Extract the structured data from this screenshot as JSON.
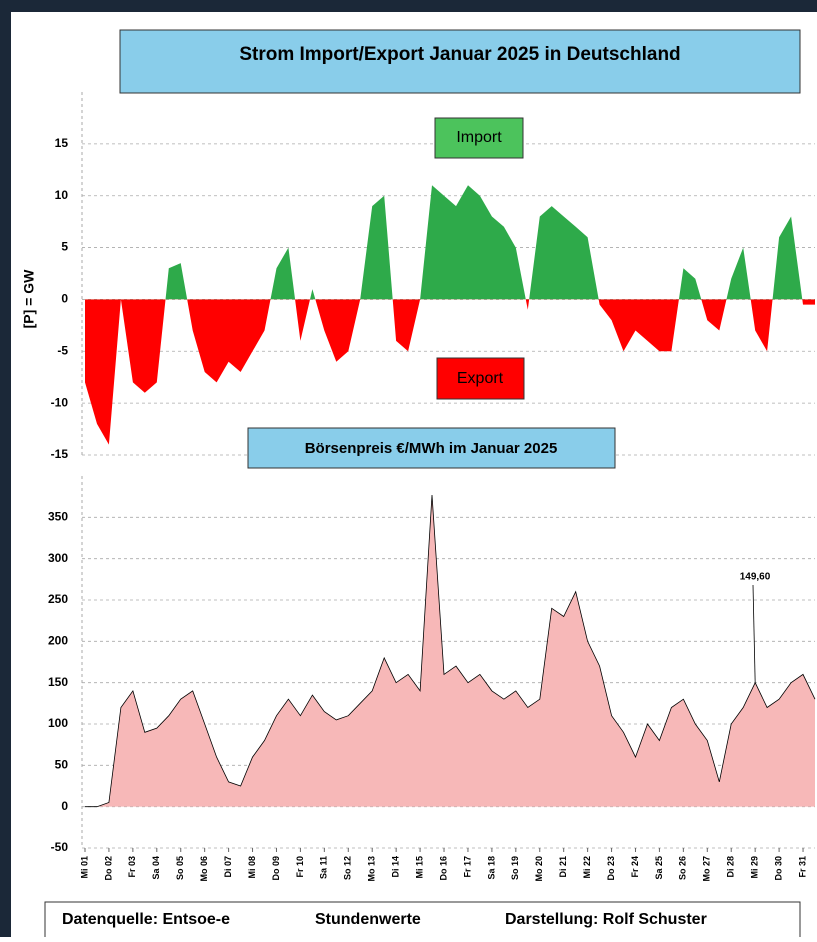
{
  "chart_data": [
    {
      "type": "area",
      "title": "Strom Import/Export Januar 2025 in Deutschland",
      "ylabel": "[P] = GW",
      "annotations": [
        "Import",
        "Export"
      ],
      "x": [
        1,
        1.5,
        2,
        2.5,
        3,
        3.5,
        4,
        4.5,
        5,
        5.5,
        6,
        6.5,
        7,
        7.5,
        8,
        8.5,
        9,
        9.5,
        10,
        10.5,
        11,
        11.5,
        12,
        12.5,
        13,
        13.5,
        14,
        14.5,
        15,
        15.5,
        16,
        16.5,
        17,
        17.5,
        18,
        18.5,
        19,
        19.5,
        20,
        20.5,
        21,
        21.5,
        22,
        22.5,
        23,
        23.5,
        24,
        24.5,
        25,
        25.5,
        26,
        26.5,
        27,
        27.5,
        28,
        28.5,
        29,
        29.5,
        30,
        30.5,
        31,
        31.5
      ],
      "values": [
        -8,
        -12,
        -14,
        0,
        -8,
        -9,
        -8,
        3,
        3.5,
        -3,
        -7,
        -8,
        -6,
        -7,
        -5,
        -3,
        3,
        5,
        -4,
        1,
        -3,
        -6,
        -5,
        0,
        9,
        10,
        -4,
        -5,
        0,
        11,
        10,
        9,
        11,
        10,
        8,
        7,
        5,
        -1,
        8,
        9,
        8,
        7,
        6,
        -0.5,
        -2,
        -5,
        -3,
        -4,
        -5,
        -5,
        3,
        2,
        -2,
        -3,
        2,
        5,
        -3,
        -5,
        6,
        8,
        -0.5,
        -0.5
      ],
      "colors": {
        "positive": "#2eaa4a",
        "negative": "#ff0000"
      },
      "xlim": [
        1,
        31.5
      ],
      "ylim": [
        -15,
        20
      ],
      "yticks": [
        -15,
        -10,
        -5,
        0,
        5,
        10,
        15
      ],
      "grid": true
    },
    {
      "type": "area",
      "title": "Börsenpreis €/MWh im Januar 2025",
      "annotation": "149,60",
      "x": [
        1,
        1.5,
        2,
        2.5,
        3,
        3.5,
        4,
        4.5,
        5,
        5.5,
        6,
        6.5,
        7,
        7.5,
        8,
        8.5,
        9,
        9.5,
        10,
        10.5,
        11,
        11.5,
        12,
        12.5,
        13,
        13.5,
        14,
        14.5,
        15,
        15.5,
        16,
        16.5,
        17,
        17.5,
        18,
        18.5,
        19,
        19.5,
        20,
        20.5,
        21,
        21.5,
        22,
        22.5,
        23,
        23.5,
        24,
        24.5,
        25,
        25.5,
        26,
        26.5,
        27,
        27.5,
        28,
        28.5,
        29,
        29.5,
        30,
        30.5,
        31,
        31.5
      ],
      "values": [
        0,
        0,
        5,
        120,
        140,
        90,
        95,
        110,
        130,
        140,
        100,
        60,
        30,
        25,
        60,
        80,
        110,
        130,
        110,
        135,
        115,
        105,
        110,
        125,
        140,
        180,
        150,
        160,
        140,
        377,
        160,
        170,
        150,
        160,
        140,
        130,
        140,
        120,
        130,
        240,
        230,
        260,
        200,
        170,
        110,
        90,
        60,
        100,
        80,
        120,
        130,
        100,
        80,
        30,
        100,
        120,
        150,
        120,
        130,
        150,
        160,
        130
      ],
      "colors": {
        "fill": "#f7b8b8",
        "line": "#000000"
      },
      "xlim": [
        1,
        31.5
      ],
      "ylim": [
        -50,
        400
      ],
      "yticks": [
        -50,
        0,
        50,
        100,
        150,
        200,
        250,
        300,
        350
      ],
      "grid": true,
      "xticks": [
        {
          "value": 1,
          "label": "Mi 01"
        },
        {
          "value": 2,
          "label": "Do 02"
        },
        {
          "value": 3,
          "label": "Fr 03"
        },
        {
          "value": 4,
          "label": "Sa 04"
        },
        {
          "value": 5,
          "label": "So 05"
        },
        {
          "value": 6,
          "label": "Mo 06"
        },
        {
          "value": 7,
          "label": "Di 07"
        },
        {
          "value": 8,
          "label": "Mi 08"
        },
        {
          "value": 9,
          "label": "Do 09"
        },
        {
          "value": 10,
          "label": "Fr 10"
        },
        {
          "value": 11,
          "label": "Sa 11"
        },
        {
          "value": 12,
          "label": "So 12"
        },
        {
          "value": 13,
          "label": "Mo 13"
        },
        {
          "value": 14,
          "label": "Di 14"
        },
        {
          "value": 15,
          "label": "Mi 15"
        },
        {
          "value": 16,
          "label": "Do 16"
        },
        {
          "value": 17,
          "label": "Fr 17"
        },
        {
          "value": 18,
          "label": "Sa 18"
        },
        {
          "value": 19,
          "label": "So 19"
        },
        {
          "value": 20,
          "label": "Mo 20"
        },
        {
          "value": 21,
          "label": "Di 21"
        },
        {
          "value": 22,
          "label": "Mi 22"
        },
        {
          "value": 23,
          "label": "Do 23"
        },
        {
          "value": 24,
          "label": "Fr 24"
        },
        {
          "value": 25,
          "label": "Sa 25"
        },
        {
          "value": 26,
          "label": "So 26"
        },
        {
          "value": 27,
          "label": "Mo 27"
        },
        {
          "value": 28,
          "label": "Di 28"
        },
        {
          "value": 29,
          "label": "Mi 29"
        },
        {
          "value": 30,
          "label": "Do 30"
        },
        {
          "value": 31,
          "label": "Fr 31"
        }
      ]
    }
  ],
  "footer": [
    "Datenquelle: Entsoe-e",
    "Stundenwerte",
    "Darstellung: Rolf Schuster"
  ]
}
